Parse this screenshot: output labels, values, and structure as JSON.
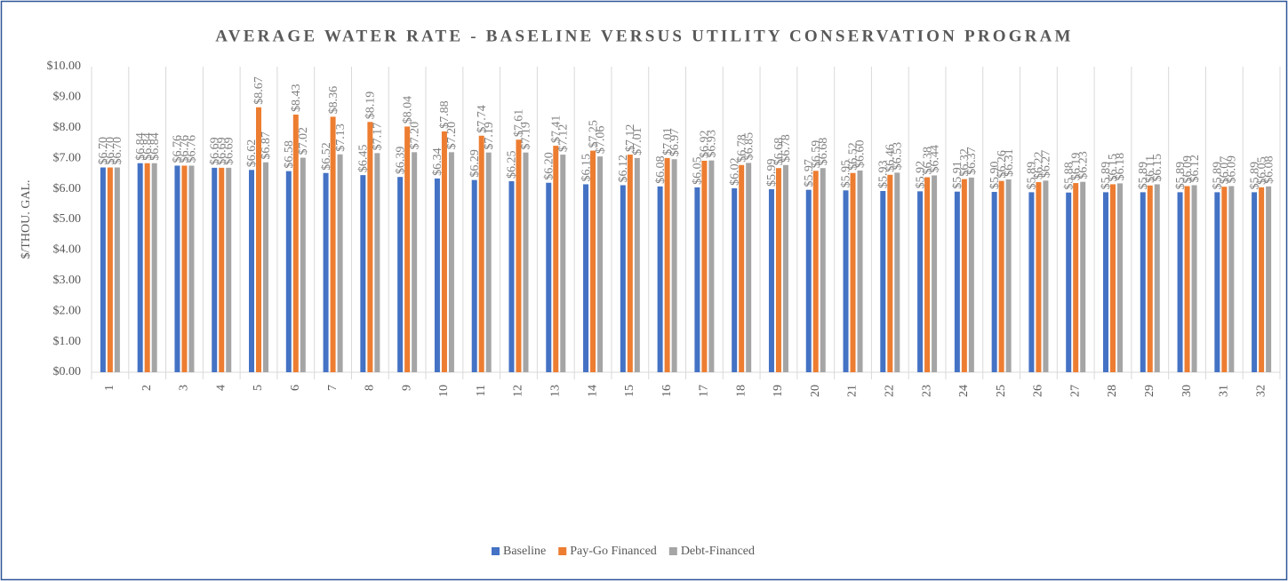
{
  "chart_data": {
    "type": "bar",
    "title": "AVERAGE WATER RATE - BASELINE VERSUS UTILITY CONSERVATION PROGRAM",
    "y_label": "$/THOU. GAL.",
    "categories": [
      "1",
      "2",
      "3",
      "4",
      "5",
      "6",
      "7",
      "8",
      "9",
      "10",
      "11",
      "12",
      "13",
      "14",
      "15",
      "16",
      "17",
      "18",
      "19",
      "20",
      "21",
      "22",
      "23",
      "24",
      "25",
      "26",
      "27",
      "28",
      "29",
      "30",
      "31",
      "32"
    ],
    "series": [
      {
        "name": "Baseline",
        "color": "#4472c4",
        "values": [
          6.7,
          6.84,
          6.76,
          6.69,
          6.62,
          6.58,
          6.52,
          6.45,
          6.39,
          6.34,
          6.29,
          6.25,
          6.2,
          6.15,
          6.12,
          6.08,
          6.05,
          6.02,
          5.99,
          5.97,
          5.95,
          5.93,
          5.92,
          5.91,
          5.9,
          5.89,
          5.88,
          5.89,
          5.89,
          5.89,
          5.89,
          5.89
        ],
        "value_labels": [
          "$6.70",
          "$6.84",
          "$6.76",
          "$6.69",
          "$6.62",
          "$6.58",
          "$6.52",
          "$6.45",
          "$6.39",
          "$6.34",
          "$6.29",
          "$6.25",
          "$6.20",
          "$6.15",
          "$6.12",
          "$6.08",
          "$6.05",
          "$6.02",
          "$5.99",
          "$5.97",
          "$5.95",
          "$5.93",
          "$5.92",
          "$5.91",
          "$5.90",
          "$5.89",
          "$5.88",
          "$5.89",
          "$5.89",
          "$5.89",
          "$5.89",
          "$5.89"
        ]
      },
      {
        "name": "Pay-Go Financed",
        "color": "#ed7d31",
        "values": [
          6.7,
          6.84,
          6.76,
          6.69,
          8.67,
          8.43,
          8.36,
          8.19,
          8.04,
          7.88,
          7.74,
          7.61,
          7.41,
          7.25,
          7.12,
          7.01,
          6.92,
          6.78,
          6.68,
          6.59,
          6.52,
          6.46,
          6.38,
          6.32,
          6.26,
          6.22,
          6.19,
          6.15,
          6.11,
          6.09,
          6.07,
          6.05
        ],
        "value_labels": [
          "$6.70",
          "$6.84",
          "$6.76",
          "$6.69",
          "$8.67",
          "$8.43",
          "$8.36",
          "$8.19",
          "$8.04",
          "$7.88",
          "$7.74",
          "$7.61",
          "$7.41",
          "$7.25",
          "$7.12",
          "$7.01",
          "$6.92",
          "$6.78",
          "$6.68",
          "$6.59",
          "$6.52",
          "$6.46",
          "$6.38",
          "$6.32",
          "$6.26",
          "$6.22",
          "$6.19",
          "$6.15",
          "$6.11",
          "$6.09",
          "$6.07",
          "$6.05"
        ]
      },
      {
        "name": "Debt-Financed",
        "color": "#a5a5a5",
        "values": [
          6.7,
          6.84,
          6.76,
          6.69,
          6.87,
          7.02,
          7.13,
          7.17,
          7.2,
          7.2,
          7.19,
          7.19,
          7.12,
          7.06,
          7.01,
          6.97,
          6.93,
          6.85,
          6.78,
          6.68,
          6.6,
          6.53,
          6.44,
          6.37,
          6.31,
          6.27,
          6.23,
          6.18,
          6.15,
          6.12,
          6.09,
          6.08
        ],
        "value_labels": [
          "$6.70",
          "$6.84",
          "$6.76",
          "$6.69",
          "$6.87",
          "$7.02",
          "$7.13",
          "$7.17",
          "$7.20",
          "$7.20",
          "$7.19",
          "$7.19",
          "$7.12",
          "$7.06",
          "$7.01",
          "$6.97",
          "$6.93",
          "$6.85",
          "$6.78",
          "$6.68",
          "$6.60",
          "$6.53",
          "$6.44",
          "$6.37",
          "$6.31",
          "$6.27",
          "$6.23",
          "$6.18",
          "$6.15",
          "$6.12",
          "$6.09",
          "$6.08"
        ]
      }
    ],
    "ylim": [
      0,
      10
    ],
    "yticks": [
      {
        "value": 0,
        "label": "$0.00"
      },
      {
        "value": 1,
        "label": "$1.00"
      },
      {
        "value": 2,
        "label": "$2.00"
      },
      {
        "value": 3,
        "label": "$3.00"
      },
      {
        "value": 4,
        "label": "$4.00"
      },
      {
        "value": 5,
        "label": "$5.00"
      },
      {
        "value": 6,
        "label": "$6.00"
      },
      {
        "value": 7,
        "label": "$7.00"
      },
      {
        "value": 8,
        "label": "$8.00"
      },
      {
        "value": 9,
        "label": "$9.00"
      },
      {
        "value": 10,
        "label": "$10.00"
      }
    ],
    "grid": false,
    "legend": "bottom"
  }
}
